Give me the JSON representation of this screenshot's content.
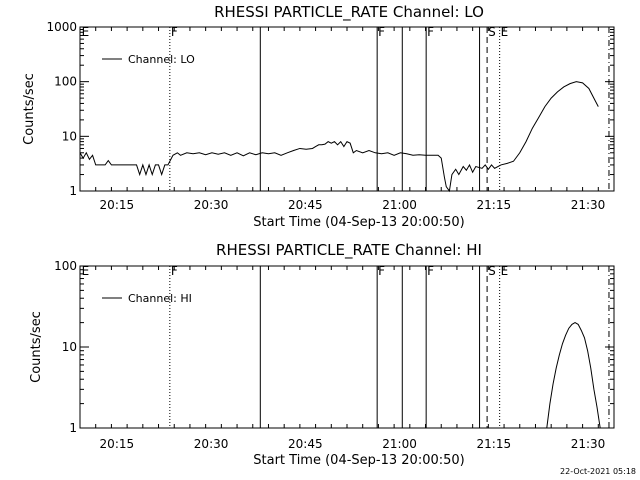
{
  "footer": {
    "timestamp": "22-Oct-2021 05:18"
  },
  "chart_data": [
    {
      "type": "line",
      "title": "RHESSI PARTICLE_RATE Channel: LO",
      "xlabel": "Start Time (04-Sep-13 20:00:50)",
      "ylabel": "Counts/sec",
      "y_scale": "log",
      "ylim": [
        1,
        1000
      ],
      "xlim_minutes_after_start": [
        0,
        41.5
      ],
      "x_tick_labels": [
        "20:15",
        "20:30",
        "20:45",
        "21:00",
        "21:15",
        "21:30"
      ],
      "y_tick_labels": [
        "1",
        "10",
        "100",
        "1000"
      ],
      "legend": {
        "position": "top-left",
        "label": "Channel: LO"
      },
      "series": [
        {
          "name": "Channel: LO",
          "points": [
            [
              0,
              5
            ],
            [
              0.5,
              4
            ],
            [
              1,
              5
            ],
            [
              1.5,
              3.8
            ],
            [
              2,
              4.5
            ],
            [
              2.5,
              3
            ],
            [
              3,
              3
            ],
            [
              4,
              3
            ],
            [
              4.5,
              3.6
            ],
            [
              5,
              3
            ],
            [
              6,
              3
            ],
            [
              7,
              3
            ],
            [
              8,
              3
            ],
            [
              9,
              3
            ],
            [
              9.5,
              2
            ],
            [
              10,
              3
            ],
            [
              10.5,
              2
            ],
            [
              11,
              3
            ],
            [
              11.5,
              2
            ],
            [
              12,
              3
            ],
            [
              12.5,
              3
            ],
            [
              13,
              2
            ],
            [
              13.5,
              3
            ],
            [
              14,
              3
            ],
            [
              14.3,
              3.5
            ],
            [
              14.8,
              4.5
            ],
            [
              15.5,
              5
            ],
            [
              16,
              4.5
            ],
            [
              17,
              5
            ],
            [
              18,
              4.8
            ],
            [
              19,
              5
            ],
            [
              20,
              4.6
            ],
            [
              21,
              5
            ],
            [
              22,
              4.7
            ],
            [
              23,
              5
            ],
            [
              24,
              4.5
            ],
            [
              25,
              5
            ],
            [
              26,
              4.4
            ],
            [
              27,
              5
            ],
            [
              28,
              4.6
            ],
            [
              29,
              5
            ],
            [
              30,
              4.8
            ],
            [
              31,
              5
            ],
            [
              32,
              4.5
            ],
            [
              33,
              5
            ],
            [
              34,
              5.5
            ],
            [
              35,
              6
            ],
            [
              36,
              5.8
            ],
            [
              37,
              6
            ],
            [
              37.5,
              6.5
            ],
            [
              38,
              7
            ],
            [
              38.5,
              7
            ],
            [
              39,
              7.2
            ],
            [
              39.5,
              8
            ],
            [
              40,
              7.5
            ],
            [
              40.5,
              8
            ],
            [
              41,
              7
            ],
            [
              41.5,
              8
            ],
            [
              42,
              6.5
            ],
            [
              42.5,
              8
            ],
            [
              43,
              7.5
            ],
            [
              43.5,
              5
            ],
            [
              44,
              5.5
            ],
            [
              45,
              5
            ],
            [
              46,
              5.5
            ],
            [
              47,
              5
            ],
            [
              48,
              4.8
            ],
            [
              49,
              5
            ],
            [
              50,
              4.5
            ],
            [
              51,
              5
            ],
            [
              52,
              4.8
            ],
            [
              53,
              4.5
            ],
            [
              54,
              4.6
            ],
            [
              55,
              4.5
            ],
            [
              56,
              4.5
            ],
            [
              57,
              4.5
            ],
            [
              57.5,
              4
            ],
            [
              58,
              1.8
            ],
            [
              58.3,
              1.2
            ],
            [
              58.8,
              1.0
            ],
            [
              59.2,
              2
            ],
            [
              59.8,
              2.5
            ],
            [
              60.3,
              2
            ],
            [
              61,
              2.8
            ],
            [
              61.5,
              2.4
            ],
            [
              62,
              3
            ],
            [
              62.5,
              2.2
            ],
            [
              63,
              2.8
            ],
            [
              64,
              2.6
            ],
            [
              64.5,
              3
            ],
            [
              65,
              2.5
            ],
            [
              65.5,
              3
            ],
            [
              66,
              2.6
            ],
            [
              67,
              3
            ],
            [
              68,
              3.2
            ],
            [
              69,
              3.5
            ],
            [
              70,
              5
            ],
            [
              71,
              8
            ],
            [
              72,
              14
            ],
            [
              73,
              22
            ],
            [
              74,
              35
            ],
            [
              75,
              50
            ],
            [
              76,
              65
            ],
            [
              77,
              80
            ],
            [
              78,
              92
            ],
            [
              79,
              100
            ],
            [
              80,
              95
            ],
            [
              81,
              75
            ],
            [
              82,
              45
            ],
            [
              82.5,
              35
            ]
          ]
        }
      ],
      "events": [
        {
          "label": "",
          "x": 14.3,
          "style": "dotted"
        },
        {
          "label": "F",
          "x": 14.3,
          "style": "none"
        },
        {
          "label": "",
          "x": 28.7,
          "style": "solid"
        },
        {
          "label": "F",
          "x": 47.3,
          "style": "solid"
        },
        {
          "label": "",
          "x": 51.3,
          "style": "solid"
        },
        {
          "label": "F",
          "x": 55.1,
          "style": "solid"
        },
        {
          "label": "",
          "x": 63.6,
          "style": "solid"
        },
        {
          "label": "S",
          "x": 64.8,
          "style": "dashed"
        },
        {
          "label": "E",
          "x": 66.8,
          "style": "dotted"
        },
        {
          "label": "",
          "x": 84.2,
          "style": "dashdot"
        },
        {
          "label": "E",
          "x": 0.1,
          "style": "none"
        }
      ]
    },
    {
      "type": "line",
      "title": "RHESSI PARTICLE_RATE Channel: HI",
      "xlabel": "Start Time (04-Sep-13 20:00:50)",
      "ylabel": "Counts/sec",
      "y_scale": "log",
      "ylim": [
        1,
        100
      ],
      "x_tick_labels": [
        "20:15",
        "20:30",
        "20:45",
        "21:00",
        "21:15",
        "21:30"
      ],
      "y_tick_labels": [
        "1",
        "10",
        "100"
      ],
      "legend": {
        "position": "top-left",
        "label": "Channel: HI"
      },
      "series": [
        {
          "name": "Channel: HI",
          "points": [
            [
              74.3,
              1
            ],
            [
              74.8,
              2
            ],
            [
              75.3,
              3.5
            ],
            [
              75.8,
              5.5
            ],
            [
              76.3,
              8
            ],
            [
              76.8,
              11
            ],
            [
              77.3,
              14
            ],
            [
              77.8,
              17
            ],
            [
              78.3,
              19
            ],
            [
              78.8,
              20
            ],
            [
              79.3,
              19
            ],
            [
              79.8,
              16
            ],
            [
              80.3,
              13
            ],
            [
              80.8,
              9
            ],
            [
              81.3,
              5.5
            ],
            [
              81.8,
              3
            ],
            [
              82.3,
              1.8
            ],
            [
              82.8,
              1
            ]
          ]
        }
      ],
      "events": [
        {
          "label": "E",
          "x": 0.1,
          "style": "none"
        },
        {
          "label": "F",
          "x": 14.3,
          "style": "dotted"
        },
        {
          "label": "",
          "x": 28.7,
          "style": "solid"
        },
        {
          "label": "F",
          "x": 47.3,
          "style": "solid"
        },
        {
          "label": "",
          "x": 51.3,
          "style": "solid"
        },
        {
          "label": "F",
          "x": 55.1,
          "style": "solid"
        },
        {
          "label": "",
          "x": 63.6,
          "style": "solid"
        },
        {
          "label": "S",
          "x": 64.8,
          "style": "dashed"
        },
        {
          "label": "E",
          "x": 66.8,
          "style": "dotted"
        },
        {
          "label": "",
          "x": 84.2,
          "style": "dashdot"
        }
      ]
    }
  ]
}
